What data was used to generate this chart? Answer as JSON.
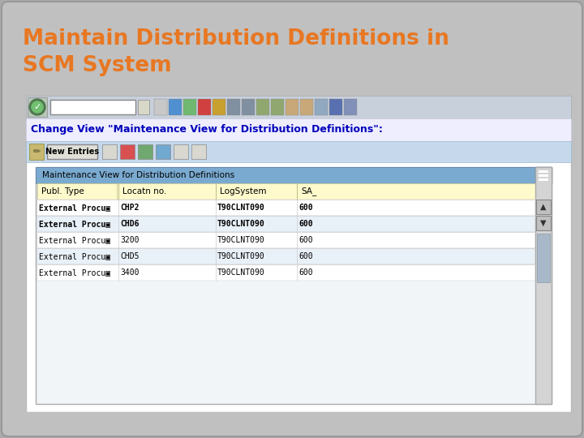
{
  "title_line1": "Maintain Distribution Definitions in",
  "title_line2": "SCM System",
  "title_color": "#E87722",
  "title_fontsize": 19,
  "bg_outer": "#AAAAAA",
  "bg_slide": "#C0C0C0",
  "sap_change_view_text": "Change View \"Maintenance View for Distribution Definitions\":",
  "sap_change_view_color": "#0000BB",
  "new_entries_text": "New Entries",
  "table_header_bg": "#7AAAD0",
  "table_section_label": "Maintenance View for Distribution Definitions",
  "col_headers": [
    "Publ. Type",
    "Locatn no.",
    "LogSystem",
    "SA_"
  ],
  "col_header_bg": "#FFFACC",
  "rows": [
    [
      "External Procu▣",
      "CHP2",
      "T90CLNT090",
      "600"
    ],
    [
      "External Procu▣",
      "CHD6",
      "T90CLNT090",
      "600"
    ],
    [
      "External Procu▣",
      "3200",
      "T90CLNT090",
      "600"
    ],
    [
      "External Procu▣",
      "CHD5",
      "T90CLNT090",
      "600"
    ],
    [
      "External Procu▣",
      "3400",
      "T90CLNT090",
      "600"
    ]
  ],
  "row_bold": [
    true,
    true,
    false,
    false,
    false
  ],
  "row_bg_even": "#FFFFFF",
  "row_bg_odd": "#E8F0F8",
  "sap_toolbar2_bg": "#C5D8EC",
  "sap_window_bg": "#FFFFFF",
  "sap_toolbar_bg": "#C8D0DC"
}
